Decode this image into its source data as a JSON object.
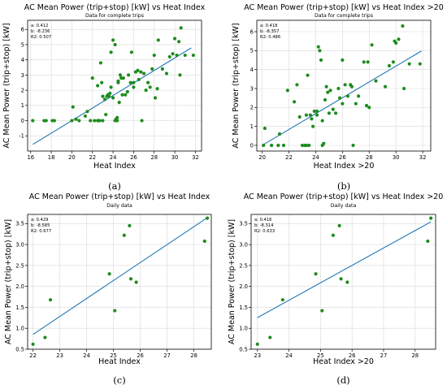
{
  "chart_data": [
    {
      "type": "scatter",
      "title": "AC Mean Power (trip+stop) [kW] vs Heat Index",
      "subtitle": "Data for complete trips",
      "xlabel": "Heat Index",
      "ylabel": "AC Mean Power (trip+stop) [kW]",
      "xlim": [
        15.7,
        32.6
      ],
      "ylim": [
        -2.0,
        6.6
      ],
      "xticks": [
        16,
        18,
        20,
        22,
        24,
        26,
        28,
        30,
        32
      ],
      "yticks": [
        -1,
        0,
        1,
        2,
        3,
        4,
        5,
        6
      ],
      "grid": true,
      "stats": [
        "a: 0.412",
        "b: -8.236",
        "R2: 0.507"
      ],
      "caption": "(a)",
      "fit": {
        "a": 0.412,
        "b": -8.236,
        "x_range": [
          16.2,
          31.6
        ]
      },
      "points": [
        [
          16.2,
          0
        ],
        [
          17.3,
          0
        ],
        [
          17.5,
          0
        ],
        [
          18.1,
          0
        ],
        [
          18.3,
          0
        ],
        [
          20.0,
          0
        ],
        [
          20.1,
          0.9
        ],
        [
          20.4,
          0.1
        ],
        [
          20.7,
          0
        ],
        [
          21.3,
          0.3
        ],
        [
          21.5,
          0.6
        ],
        [
          21.8,
          0
        ],
        [
          22.0,
          2.8
        ],
        [
          22.2,
          0
        ],
        [
          22.5,
          2.3
        ],
        [
          22.5,
          0
        ],
        [
          22.6,
          0
        ],
        [
          22.7,
          0
        ],
        [
          22.8,
          3.8
        ],
        [
          22.9,
          2.5
        ],
        [
          23.0,
          0
        ],
        [
          23.0,
          1.6
        ],
        [
          23.2,
          1.4
        ],
        [
          23.3,
          0.4
        ],
        [
          23.4,
          1.6
        ],
        [
          23.5,
          1.7
        ],
        [
          23.6,
          1.6
        ],
        [
          23.7,
          1.8
        ],
        [
          23.8,
          4.5
        ],
        [
          23.8,
          2.2
        ],
        [
          24.0,
          1.5
        ],
        [
          24.0,
          5.3
        ],
        [
          24.2,
          0
        ],
        [
          24.2,
          5.0
        ],
        [
          24.3,
          0.1
        ],
        [
          24.4,
          0.2
        ],
        [
          24.4,
          0
        ],
        [
          24.5,
          2.5
        ],
        [
          24.5,
          2.6
        ],
        [
          24.6,
          1.2
        ],
        [
          24.7,
          3.0
        ],
        [
          24.8,
          2.8
        ],
        [
          24.9,
          1.7
        ],
        [
          25.0,
          2.8
        ],
        [
          25.2,
          1.7
        ],
        [
          25.4,
          1.9
        ],
        [
          25.5,
          3.0
        ],
        [
          25.7,
          2.5
        ],
        [
          25.8,
          4.5
        ],
        [
          26.0,
          2.5
        ],
        [
          26.0,
          2.2
        ],
        [
          26.2,
          3.2
        ],
        [
          26.4,
          3.3
        ],
        [
          26.5,
          2.7
        ],
        [
          26.7,
          3.2
        ],
        [
          26.8,
          0
        ],
        [
          27.0,
          3.1
        ],
        [
          27.2,
          2.0
        ],
        [
          27.4,
          2.5
        ],
        [
          27.6,
          2.2
        ],
        [
          27.8,
          3.4
        ],
        [
          28.0,
          4.3
        ],
        [
          28.1,
          1.5
        ],
        [
          28.3,
          2.1
        ],
        [
          28.4,
          5.3
        ],
        [
          28.8,
          3.4
        ],
        [
          29.2,
          3.1
        ],
        [
          29.5,
          4.2
        ],
        [
          29.8,
          4.4
        ],
        [
          30.0,
          5.4
        ],
        [
          30.2,
          4.3
        ],
        [
          30.4,
          5.2
        ],
        [
          30.5,
          3.0
        ],
        [
          30.6,
          6.1
        ],
        [
          31.0,
          4.3
        ],
        [
          31.8,
          4.3
        ]
      ]
    },
    {
      "type": "scatter",
      "title": "AC Mean Power (trip+stop) [kW] vs Heat Index >20",
      "subtitle": "Data for complete trips",
      "xlabel": "Heat Index >20",
      "ylabel": "AC Mean Power (trip+stop) [kW]",
      "xlim": [
        19.6,
        32.6
      ],
      "ylim": [
        -0.3,
        6.6
      ],
      "xticks": [
        20,
        22,
        24,
        26,
        28,
        30,
        32
      ],
      "yticks": [
        0,
        1,
        2,
        3,
        4,
        5,
        6
      ],
      "grid": true,
      "stats": [
        "a: 0.418",
        "b: -8.357",
        "R2: 0.486"
      ],
      "caption": "(b)",
      "fit": {
        "a": 0.418,
        "b": -8.357,
        "x_range": [
          20.0,
          31.9
        ]
      },
      "points": [
        [
          20.1,
          0
        ],
        [
          20.2,
          0.9
        ],
        [
          20.7,
          0
        ],
        [
          21.2,
          0
        ],
        [
          21.3,
          0.6
        ],
        [
          21.6,
          0
        ],
        [
          21.9,
          2.9
        ],
        [
          22.4,
          2.3
        ],
        [
          22.6,
          3.2
        ],
        [
          22.8,
          1.5
        ],
        [
          23.0,
          0
        ],
        [
          23.2,
          0
        ],
        [
          23.3,
          0
        ],
        [
          23.3,
          1.6
        ],
        [
          23.4,
          3.7
        ],
        [
          23.5,
          0
        ],
        [
          23.6,
          1.6
        ],
        [
          23.7,
          1.4
        ],
        [
          23.8,
          1.0
        ],
        [
          23.9,
          1.8
        ],
        [
          24.1,
          1.8
        ],
        [
          24.1,
          1.6
        ],
        [
          24.2,
          5.2
        ],
        [
          24.3,
          5.0
        ],
        [
          24.4,
          4.5
        ],
        [
          24.5,
          0
        ],
        [
          24.5,
          1.3
        ],
        [
          24.6,
          0.1
        ],
        [
          24.7,
          2.4
        ],
        [
          24.8,
          3.1
        ],
        [
          24.9,
          2.8
        ],
        [
          25.0,
          1.7
        ],
        [
          25.1,
          2.9
        ],
        [
          25.3,
          1.9
        ],
        [
          25.5,
          1.7
        ],
        [
          25.7,
          3.0
        ],
        [
          25.8,
          2.5
        ],
        [
          26.0,
          4.5
        ],
        [
          26.0,
          2.2
        ],
        [
          26.2,
          3.2
        ],
        [
          26.4,
          2.6
        ],
        [
          26.6,
          3.2
        ],
        [
          26.7,
          3.1
        ],
        [
          26.8,
          0
        ],
        [
          27.0,
          2.2
        ],
        [
          27.2,
          2.6
        ],
        [
          27.6,
          4.4
        ],
        [
          27.8,
          2.1
        ],
        [
          27.9,
          4.4
        ],
        [
          28.0,
          2.0
        ],
        [
          28.2,
          5.3
        ],
        [
          28.5,
          3.4
        ],
        [
          29.2,
          3.1
        ],
        [
          29.5,
          4.2
        ],
        [
          29.8,
          4.4
        ],
        [
          29.9,
          5.5
        ],
        [
          30.0,
          5.4
        ],
        [
          30.2,
          5.6
        ],
        [
          30.5,
          6.3
        ],
        [
          30.6,
          3.0
        ],
        [
          31.0,
          4.3
        ],
        [
          31.8,
          4.3
        ]
      ]
    },
    {
      "type": "scatter",
      "title": "AC Mean Power (trip+stop) [kW] vs Heat Index",
      "subtitle": "Daily data",
      "xlabel": "Heat Index",
      "ylabel": "AC Mean Power (trip+stop) [kW]",
      "xlim": [
        21.8,
        28.65
      ],
      "ylim": [
        0.5,
        3.72
      ],
      "xticks": [
        22,
        23,
        24,
        25,
        26,
        27,
        28
      ],
      "yticks": [
        0.5,
        1.0,
        1.5,
        2.0,
        2.5,
        3.0,
        3.5
      ],
      "grid": true,
      "stats": [
        "a: 0.429",
        "b: -8.585",
        "R2: 0.677"
      ],
      "caption": "(c)",
      "fit": {
        "a": 0.429,
        "b": -8.585,
        "x_range": [
          22.0,
          28.5
        ]
      },
      "points": [
        [
          22.0,
          0.62
        ],
        [
          22.45,
          0.78
        ],
        [
          22.65,
          1.68
        ],
        [
          24.85,
          2.3
        ],
        [
          25.05,
          1.42
        ],
        [
          25.4,
          3.22
        ],
        [
          25.6,
          3.45
        ],
        [
          25.65,
          2.18
        ],
        [
          25.85,
          2.1
        ],
        [
          28.4,
          3.08
        ],
        [
          28.5,
          3.63
        ]
      ]
    },
    {
      "type": "scatter",
      "title": "AC Mean Power (trip+stop) [kW] vs Heat Index >20",
      "subtitle": "Daily data",
      "xlabel": "Heat Index >20",
      "ylabel": "AC Mean Power (trip+stop) [kW]",
      "xlim": [
        22.8,
        28.65
      ],
      "ylim": [
        0.5,
        3.72
      ],
      "xticks": [
        23,
        24,
        25,
        26,
        27,
        28
      ],
      "yticks": [
        0.5,
        1.0,
        1.5,
        2.0,
        2.5,
        3.0,
        3.5
      ],
      "grid": true,
      "stats": [
        "a: 0.416",
        "b: -8.314",
        "R2: 0.633"
      ],
      "caption": "(d)",
      "fit": {
        "a": 0.416,
        "b": -8.314,
        "x_range": [
          23.0,
          28.5
        ]
      },
      "points": [
        [
          23.0,
          0.62
        ],
        [
          23.4,
          0.78
        ],
        [
          23.8,
          1.68
        ],
        [
          24.85,
          2.3
        ],
        [
          25.05,
          1.42
        ],
        [
          25.4,
          3.22
        ],
        [
          25.6,
          3.45
        ],
        [
          25.65,
          2.18
        ],
        [
          25.85,
          2.1
        ],
        [
          28.4,
          3.08
        ],
        [
          28.5,
          3.63
        ]
      ]
    }
  ]
}
